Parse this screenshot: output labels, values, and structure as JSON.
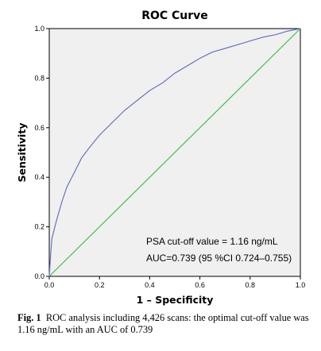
{
  "chart_data": {
    "type": "line",
    "title": "ROC Curve",
    "xlabel": "1 – Specificity",
    "ylabel": "Sensitivity",
    "xlim": [
      0,
      1
    ],
    "ylim": [
      0,
      1
    ],
    "xticks": [
      "0.0",
      "0.2",
      "0.4",
      "0.6",
      "0.8",
      "1.0"
    ],
    "yticks": [
      "0.0",
      "0.2",
      "0.4",
      "0.6",
      "0.8",
      "1.0"
    ],
    "grid": false,
    "colors": {
      "background": "#f0f0f0",
      "roc": "#6a73c2",
      "reference": "#3fbf3f"
    },
    "series": [
      {
        "points": [
          [
            0,
            0
          ],
          [
            0.005,
            0.08
          ],
          [
            0.01,
            0.15
          ],
          [
            0.02,
            0.19
          ],
          [
            0.03,
            0.23
          ],
          [
            0.05,
            0.3
          ],
          [
            0.07,
            0.36
          ],
          [
            0.1,
            0.42
          ],
          [
            0.13,
            0.48
          ],
          [
            0.16,
            0.52
          ],
          [
            0.2,
            0.57
          ],
          [
            0.25,
            0.62
          ],
          [
            0.3,
            0.67
          ],
          [
            0.35,
            0.71
          ],
          [
            0.4,
            0.75
          ],
          [
            0.45,
            0.78
          ],
          [
            0.5,
            0.82
          ],
          [
            0.55,
            0.85
          ],
          [
            0.6,
            0.88
          ],
          [
            0.65,
            0.905
          ],
          [
            0.7,
            0.92
          ],
          [
            0.75,
            0.935
          ],
          [
            0.8,
            0.95
          ],
          [
            0.85,
            0.965
          ],
          [
            0.9,
            0.975
          ],
          [
            0.95,
            0.99
          ],
          [
            1.0,
            1.0
          ]
        ]
      },
      {
        "points": [
          [
            0,
            0
          ],
          [
            1,
            1
          ]
        ]
      }
    ],
    "annotations": [
      "PSA cut-off value = 1.16 ng/mL",
      "AUC=0.739 (95 %CI 0.724–0.755)"
    ]
  },
  "caption": {
    "label": "Fig. 1",
    "text": "ROC analysis including 4,426 scans: the optimal cut-off value was 1.16 ng/mL with an AUC of 0.739"
  }
}
